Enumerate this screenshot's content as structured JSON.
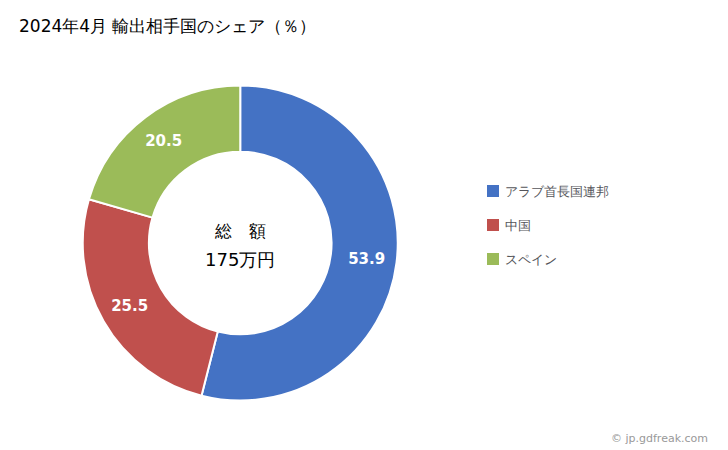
{
  "chart_data": {
    "type": "donut",
    "title": "2024年4月 輸出相手国のシェア（％）",
    "categories": [
      "アラブ首長国連邦",
      "中国",
      "スペイン"
    ],
    "values": [
      53.9,
      25.5,
      20.5
    ],
    "colors": [
      "#4472C4",
      "#C0504D",
      "#9BBB59"
    ],
    "data_labels": true,
    "legend": "right",
    "annotations": [
      "総　額",
      "175万円",
      "© jp.gdfreak.com"
    ]
  }
}
